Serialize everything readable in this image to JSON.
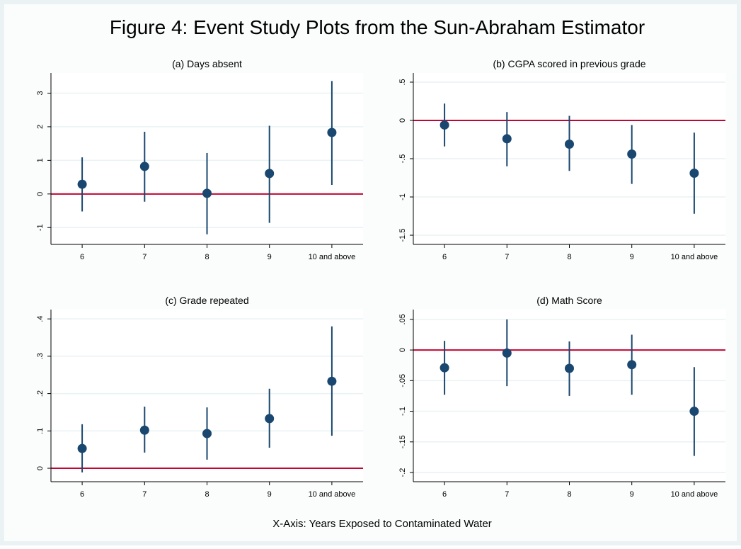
{
  "title": "Figure 4: Event Study Plots from the Sun-Abraham Estimator",
  "caption": "X-Axis: Years Exposed to Contaminated Water",
  "chart_data": [
    {
      "type": "errorbar",
      "title": "(a) Days absent",
      "categories": [
        "6",
        "7",
        "8",
        "9",
        "10 and above"
      ],
      "values": [
        0.29,
        0.82,
        0.02,
        0.61,
        1.83
      ],
      "ci_low": [
        -0.52,
        -0.23,
        -1.2,
        -0.86,
        0.27
      ],
      "ci_high": [
        1.09,
        1.85,
        1.22,
        2.03,
        3.36
      ],
      "color": "#1a476f",
      "ylim": [
        -1.5,
        3.6
      ],
      "yticks": [
        -1,
        0,
        1,
        2,
        3
      ],
      "grid": true,
      "hline": 0,
      "hline_color": "#c10534"
    },
    {
      "type": "errorbar",
      "title": "(b) CGPA scored in previous grade",
      "categories": [
        "6",
        "7",
        "8",
        "9",
        "10 and above"
      ],
      "values": [
        -0.06,
        -0.24,
        -0.31,
        -0.44,
        -0.69
      ],
      "ci_low": [
        -0.34,
        -0.6,
        -0.66,
        -0.83,
        -1.22
      ],
      "ci_high": [
        0.22,
        0.11,
        0.06,
        -0.06,
        -0.16
      ],
      "color": "#1a476f",
      "ylim": [
        -1.62,
        0.62
      ],
      "yticks": [
        {
          "value": -1.5,
          "label": "-1.5"
        },
        -1,
        {
          "value": -0.5,
          "label": "-.5"
        },
        0,
        {
          "value": 0.5,
          "label": ".5"
        }
      ],
      "grid": true,
      "hline": 0,
      "hline_color": "#c10534"
    },
    {
      "type": "errorbar",
      "title": "(c) Grade repeated",
      "categories": [
        "6",
        "7",
        "8",
        "9",
        "10 and above"
      ],
      "values": [
        0.053,
        0.102,
        0.093,
        0.133,
        0.233
      ],
      "ci_low": [
        -0.011,
        0.042,
        0.023,
        0.055,
        0.087
      ],
      "ci_high": [
        0.118,
        0.165,
        0.163,
        0.213,
        0.38
      ],
      "color": "#1a476f",
      "ylim": [
        -0.036,
        0.425
      ],
      "yticks": [
        0,
        {
          "value": 0.1,
          "label": ".1"
        },
        {
          "value": 0.2,
          "label": ".2"
        },
        {
          "value": 0.3,
          "label": ".3"
        },
        {
          "value": 0.4,
          "label": ".4"
        }
      ],
      "grid": true,
      "hline": 0,
      "hline_color": "#c10534"
    },
    {
      "type": "errorbar",
      "title": "(d) Math Score",
      "categories": [
        "6",
        "7",
        "8",
        "9",
        "10 and above"
      ],
      "values": [
        -0.029,
        -0.005,
        -0.03,
        -0.024,
        -0.1
      ],
      "ci_low": [
        -0.073,
        -0.059,
        -0.075,
        -0.073,
        -0.173
      ],
      "ci_high": [
        0.015,
        0.05,
        0.014,
        0.025,
        -0.028
      ],
      "color": "#1a476f",
      "ylim": [
        -0.215,
        0.066
      ],
      "yticks": [
        {
          "value": -0.2,
          "label": "-.2"
        },
        {
          "value": -0.15,
          "label": "-.15"
        },
        {
          "value": -0.1,
          "label": "-.1"
        },
        {
          "value": -0.05,
          "label": "-.05"
        },
        0,
        {
          "value": 0.05,
          "label": ".05"
        }
      ],
      "grid": true,
      "hline": 0,
      "hline_color": "#c10534"
    }
  ]
}
